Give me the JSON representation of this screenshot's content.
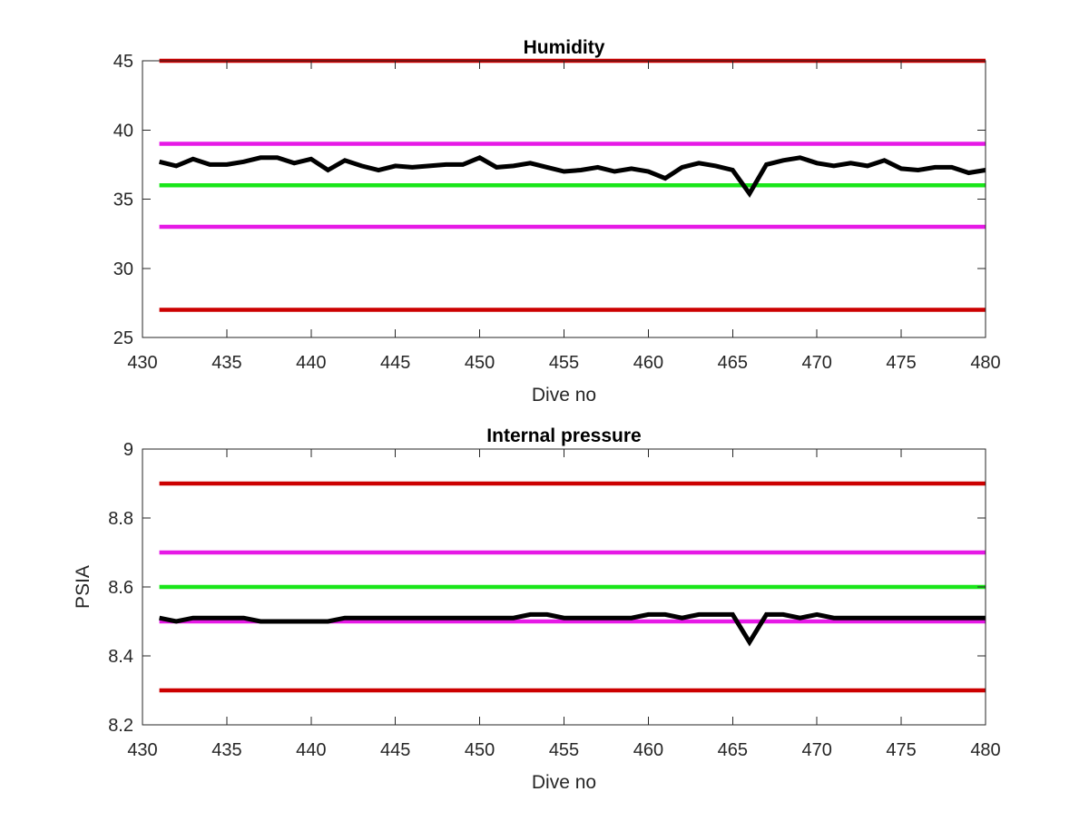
{
  "chart_data": [
    {
      "type": "line",
      "title": "Humidity",
      "xlabel": "Dive no",
      "ylabel": "",
      "xlim": [
        430,
        480
      ],
      "ylim": [
        25,
        45
      ],
      "xticks": [
        "430",
        "435",
        "440",
        "445",
        "450",
        "455",
        "460",
        "465",
        "470",
        "475",
        "480"
      ],
      "yticks": [
        "25",
        "30",
        "35",
        "40",
        "45"
      ],
      "grid": false,
      "threshold_lines": [
        {
          "value": 45,
          "color": "#cc0000"
        },
        {
          "value": 39,
          "color": "#e619e6"
        },
        {
          "value": 36,
          "color": "#19e619"
        },
        {
          "value": 33,
          "color": "#e619e6"
        },
        {
          "value": 27,
          "color": "#cc0000"
        }
      ],
      "series": [
        {
          "color": "#000000",
          "x": [
            431,
            432,
            433,
            434,
            435,
            436,
            437,
            438,
            439,
            440,
            441,
            442,
            443,
            444,
            445,
            446,
            447,
            448,
            449,
            450,
            451,
            452,
            453,
            454,
            455,
            456,
            457,
            458,
            459,
            460,
            461,
            462,
            463,
            464,
            465,
            466,
            467,
            468,
            469,
            470,
            471,
            472,
            473,
            474,
            475,
            476,
            477,
            478,
            479,
            480
          ],
          "values": [
            37.7,
            37.4,
            37.9,
            37.5,
            37.5,
            37.7,
            38.0,
            38.0,
            37.6,
            37.9,
            37.1,
            37.8,
            37.4,
            37.1,
            37.4,
            37.3,
            37.4,
            37.5,
            37.5,
            38.0,
            37.3,
            37.4,
            37.6,
            37.3,
            37.0,
            37.1,
            37.3,
            37.0,
            37.2,
            37.0,
            36.5,
            37.3,
            37.6,
            37.4,
            37.1,
            35.4,
            37.5,
            37.8,
            38.0,
            37.6,
            37.4,
            37.6,
            37.4,
            37.8,
            37.2,
            37.1,
            37.3,
            37.3,
            36.9,
            37.1
          ]
        }
      ]
    },
    {
      "type": "line",
      "title": "Internal pressure",
      "xlabel": "Dive no",
      "ylabel": "PSIA",
      "xlim": [
        430,
        480
      ],
      "ylim": [
        8.2,
        9.0
      ],
      "xticks": [
        "430",
        "435",
        "440",
        "445",
        "450",
        "455",
        "460",
        "465",
        "470",
        "475",
        "480"
      ],
      "yticks": [
        "8.2",
        "8.4",
        "8.6",
        "8.8",
        "9"
      ],
      "grid": false,
      "threshold_lines": [
        {
          "value": 8.9,
          "color": "#cc0000"
        },
        {
          "value": 8.7,
          "color": "#e619e6"
        },
        {
          "value": 8.6,
          "color": "#19e619"
        },
        {
          "value": 8.5,
          "color": "#e619e6"
        },
        {
          "value": 8.3,
          "color": "#cc0000"
        }
      ],
      "series": [
        {
          "color": "#000000",
          "x": [
            431,
            432,
            433,
            434,
            435,
            436,
            437,
            438,
            439,
            440,
            441,
            442,
            443,
            444,
            445,
            446,
            447,
            448,
            449,
            450,
            451,
            452,
            453,
            454,
            455,
            456,
            457,
            458,
            459,
            460,
            461,
            462,
            463,
            464,
            465,
            466,
            467,
            468,
            469,
            470,
            471,
            472,
            473,
            474,
            475,
            476,
            477,
            478,
            479,
            480
          ],
          "values": [
            8.51,
            8.5,
            8.51,
            8.51,
            8.51,
            8.51,
            8.5,
            8.5,
            8.5,
            8.5,
            8.5,
            8.51,
            8.51,
            8.51,
            8.51,
            8.51,
            8.51,
            8.51,
            8.51,
            8.51,
            8.51,
            8.51,
            8.52,
            8.52,
            8.51,
            8.51,
            8.51,
            8.51,
            8.51,
            8.52,
            8.52,
            8.51,
            8.52,
            8.52,
            8.52,
            8.44,
            8.52,
            8.52,
            8.51,
            8.52,
            8.51,
            8.51,
            8.51,
            8.51,
            8.51,
            8.51,
            8.51,
            8.51,
            8.51,
            8.51
          ]
        }
      ]
    }
  ]
}
